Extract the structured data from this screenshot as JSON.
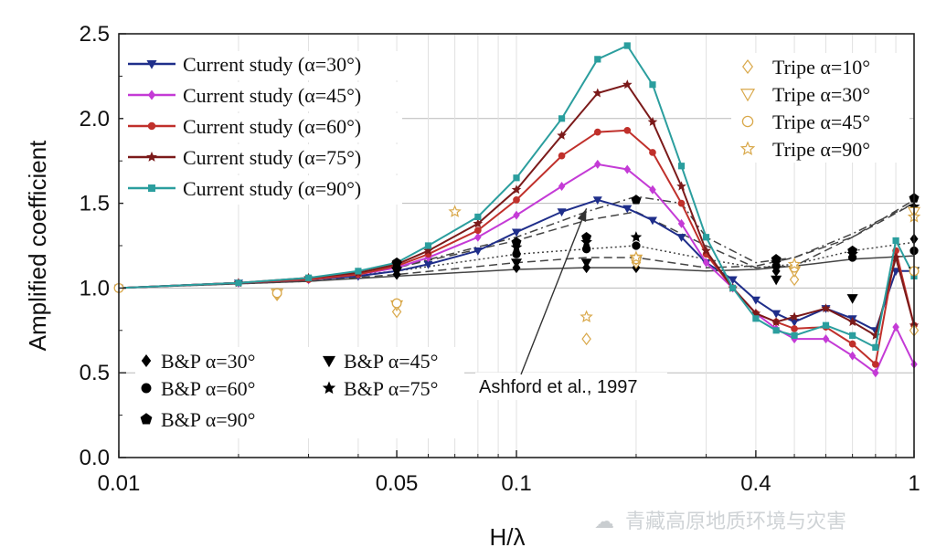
{
  "chart_data": {
    "type": "line",
    "xlabel": "H/λ",
    "ylabel": "Amplified coefficient",
    "xscale": "log",
    "xlim": [
      0.01,
      1
    ],
    "ylim": [
      0,
      2.5
    ],
    "xticks": [
      {
        "value": 0.01,
        "label": "0.01"
      },
      {
        "value": 0.05,
        "label": "0.05"
      },
      {
        "value": 0.1,
        "label": "0.1"
      },
      {
        "value": 0.4,
        "label": "0.4"
      },
      {
        "value": 1,
        "label": "1"
      }
    ],
    "yticks": [
      {
        "value": 0,
        "label": "0.0"
      },
      {
        "value": 0.5,
        "label": "0.5"
      },
      {
        "value": 1,
        "label": "1.0"
      },
      {
        "value": 1.5,
        "label": "1.5"
      },
      {
        "value": 2,
        "label": "2.0"
      },
      {
        "value": 2.5,
        "label": "2.5"
      }
    ],
    "series": [
      {
        "name": "Current study (α=30°)",
        "color": "#1f2e8a",
        "marker": "tri-down",
        "x": [
          0.01,
          0.02,
          0.03,
          0.04,
          0.05,
          0.06,
          0.08,
          0.1,
          0.13,
          0.16,
          0.19,
          0.22,
          0.26,
          0.3,
          0.35,
          0.4,
          0.45,
          0.5,
          0.6,
          0.7,
          0.8,
          0.9,
          1.0
        ],
        "y": [
          1.0,
          1.03,
          1.05,
          1.07,
          1.1,
          1.14,
          1.22,
          1.33,
          1.45,
          1.52,
          1.47,
          1.4,
          1.3,
          1.15,
          1.05,
          0.93,
          0.85,
          0.8,
          0.88,
          0.82,
          0.75,
          1.1,
          1.1
        ]
      },
      {
        "name": "Current study (α=45°)",
        "color": "#c43bd6",
        "marker": "diamond",
        "x": [
          0.01,
          0.02,
          0.03,
          0.04,
          0.05,
          0.06,
          0.08,
          0.1,
          0.13,
          0.16,
          0.19,
          0.22,
          0.26,
          0.3,
          0.35,
          0.4,
          0.45,
          0.5,
          0.6,
          0.7,
          0.8,
          0.9,
          1.0
        ],
        "y": [
          1.0,
          1.03,
          1.05,
          1.08,
          1.12,
          1.18,
          1.3,
          1.43,
          1.6,
          1.73,
          1.7,
          1.58,
          1.38,
          1.15,
          1.0,
          0.85,
          0.76,
          0.7,
          0.7,
          0.6,
          0.5,
          0.77,
          0.55
        ]
      },
      {
        "name": "Current study (α=60°)",
        "color": "#c0302b",
        "marker": "circle",
        "x": [
          0.01,
          0.02,
          0.03,
          0.04,
          0.05,
          0.06,
          0.08,
          0.1,
          0.13,
          0.16,
          0.19,
          0.22,
          0.26,
          0.3,
          0.35,
          0.4,
          0.45,
          0.5,
          0.6,
          0.7,
          0.8,
          0.9,
          1.0
        ],
        "y": [
          1.0,
          1.03,
          1.05,
          1.08,
          1.13,
          1.2,
          1.34,
          1.52,
          1.78,
          1.92,
          1.93,
          1.8,
          1.5,
          1.2,
          1.0,
          0.85,
          0.8,
          0.76,
          0.77,
          0.67,
          0.55,
          1.22,
          0.78
        ]
      },
      {
        "name": "Current study (α=75°)",
        "color": "#7b1a1a",
        "marker": "star",
        "x": [
          0.01,
          0.02,
          0.03,
          0.04,
          0.05,
          0.06,
          0.08,
          0.1,
          0.13,
          0.16,
          0.19,
          0.22,
          0.26,
          0.3,
          0.35,
          0.4,
          0.45,
          0.5,
          0.6,
          0.7,
          0.8,
          0.9,
          1.0
        ],
        "y": [
          1.0,
          1.03,
          1.06,
          1.09,
          1.14,
          1.22,
          1.38,
          1.58,
          1.9,
          2.15,
          2.2,
          1.98,
          1.6,
          1.22,
          1.0,
          0.85,
          0.8,
          0.83,
          0.88,
          0.8,
          0.72,
          1.18,
          0.78
        ]
      },
      {
        "name": "Current study (α=90°)",
        "color": "#2b9e9e",
        "marker": "square",
        "x": [
          0.01,
          0.02,
          0.03,
          0.04,
          0.05,
          0.06,
          0.08,
          0.1,
          0.13,
          0.16,
          0.19,
          0.22,
          0.26,
          0.3,
          0.35,
          0.4,
          0.45,
          0.5,
          0.6,
          0.7,
          0.8,
          0.9,
          1.0
        ],
        "y": [
          1.0,
          1.03,
          1.06,
          1.1,
          1.15,
          1.25,
          1.42,
          1.65,
          2.0,
          2.35,
          2.43,
          2.2,
          1.72,
          1.3,
          1.0,
          0.82,
          0.75,
          0.72,
          0.78,
          0.72,
          0.65,
          1.28,
          1.07
        ]
      }
    ],
    "theory_lines": [
      {
        "style": "solid",
        "x": [
          0.01,
          0.03,
          0.05,
          0.1,
          0.15,
          0.2,
          0.3,
          0.4,
          0.5,
          0.7,
          1.0
        ],
        "y": [
          1.0,
          1.04,
          1.07,
          1.11,
          1.12,
          1.12,
          1.1,
          1.11,
          1.13,
          1.17,
          1.19
        ]
      },
      {
        "style": "dotted",
        "x": [
          0.01,
          0.03,
          0.05,
          0.1,
          0.15,
          0.2,
          0.3,
          0.4,
          0.5,
          0.7,
          1.0
        ],
        "y": [
          1.0,
          1.05,
          1.1,
          1.2,
          1.23,
          1.25,
          1.17,
          1.12,
          1.14,
          1.22,
          1.27
        ]
      },
      {
        "style": "dashed",
        "x": [
          0.01,
          0.03,
          0.05,
          0.1,
          0.15,
          0.2,
          0.3,
          0.4,
          0.5,
          0.7,
          1.0
        ],
        "y": [
          1.0,
          1.04,
          1.08,
          1.15,
          1.18,
          1.18,
          1.12,
          1.13,
          1.18,
          1.3,
          1.5
        ]
      },
      {
        "style": "dashed",
        "x": [
          0.01,
          0.03,
          0.05,
          0.1,
          0.15,
          0.2,
          0.3,
          0.4,
          0.5,
          0.7,
          1.0
        ],
        "y": [
          1.0,
          1.05,
          1.12,
          1.28,
          1.4,
          1.45,
          1.25,
          1.12,
          1.13,
          1.3,
          1.52
        ]
      },
      {
        "style": "dashdot",
        "x": [
          0.01,
          0.03,
          0.05,
          0.1,
          0.15,
          0.2,
          0.26,
          0.3,
          0.4,
          0.5,
          0.7,
          1.0
        ],
        "y": [
          1.0,
          1.05,
          1.12,
          1.3,
          1.45,
          1.54,
          1.5,
          1.3,
          1.15,
          1.18,
          1.32,
          1.5
        ]
      }
    ],
    "bp_points": [
      {
        "name": "B&P α=30°",
        "marker": "diamond",
        "points": [
          [
            0.05,
            1.08
          ],
          [
            0.1,
            1.12
          ],
          [
            0.15,
            1.12
          ],
          [
            0.2,
            1.12
          ],
          [
            0.45,
            1.1
          ],
          [
            1.0,
            1.29
          ]
        ]
      },
      {
        "name": "B&P α=45°",
        "marker": "tri-down",
        "points": [
          [
            0.05,
            1.1
          ],
          [
            0.1,
            1.15
          ],
          [
            0.15,
            1.15
          ],
          [
            0.2,
            1.16
          ],
          [
            0.45,
            1.05
          ],
          [
            0.7,
            0.94
          ],
          [
            1.0,
            1.1
          ]
        ]
      },
      {
        "name": "B&P α=60°",
        "marker": "circle",
        "points": [
          [
            0.05,
            1.12
          ],
          [
            0.1,
            1.2
          ],
          [
            0.15,
            1.23
          ],
          [
            0.2,
            1.25
          ],
          [
            0.45,
            1.13
          ],
          [
            0.7,
            1.18
          ],
          [
            1.0,
            1.22
          ]
        ]
      },
      {
        "name": "B&P α=75°",
        "marker": "star",
        "points": [
          [
            0.05,
            1.14
          ],
          [
            0.1,
            1.24
          ],
          [
            0.15,
            1.27
          ],
          [
            0.2,
            1.3
          ],
          [
            0.45,
            1.15
          ],
          [
            0.7,
            1.2
          ],
          [
            1.0,
            1.48
          ]
        ]
      },
      {
        "name": "B&P α=90°",
        "marker": "pentagon",
        "points": [
          [
            0.05,
            1.15
          ],
          [
            0.1,
            1.27
          ],
          [
            0.15,
            1.3
          ],
          [
            0.2,
            1.52
          ],
          [
            0.45,
            1.17
          ],
          [
            0.7,
            1.22
          ],
          [
            1.0,
            1.53
          ]
        ]
      }
    ],
    "tripe_points": [
      {
        "name": "Tripe α=10°",
        "marker": "diamond-open",
        "points": [
          [
            0.025,
            0.96
          ],
          [
            0.05,
            0.86
          ],
          [
            0.15,
            0.7
          ],
          [
            0.2,
            1.15
          ],
          [
            0.5,
            1.05
          ],
          [
            1.0,
            0.75
          ]
        ]
      },
      {
        "name": "Tripe α=30°",
        "marker": "tri-down-open",
        "points": [
          [
            0.025,
            0.97
          ],
          [
            0.05,
            0.9
          ],
          [
            0.2,
            1.17
          ],
          [
            0.5,
            1.1
          ],
          [
            1.0,
            1.45
          ]
        ]
      },
      {
        "name": "Tripe α=45°",
        "marker": "circle-open",
        "points": [
          [
            0.01,
            1.0
          ],
          [
            0.025,
            0.97
          ],
          [
            0.05,
            0.91
          ],
          [
            0.2,
            1.17
          ],
          [
            0.5,
            1.12
          ],
          [
            1.0,
            1.1
          ]
        ]
      },
      {
        "name": "Tripe α=90°",
        "marker": "star-open",
        "points": [
          [
            0.07,
            1.45
          ],
          [
            0.15,
            0.83
          ],
          [
            0.2,
            1.18
          ],
          [
            0.5,
            1.14
          ],
          [
            1.0,
            1.42
          ]
        ]
      }
    ],
    "annotation": {
      "text": "Ashford et al., 1997",
      "target_x": 0.15,
      "target_y": 1.47
    }
  },
  "legends": {
    "current": [
      "Current study (α=30°)",
      "Current study (α=45°)",
      "Current study (α=60°)",
      "Current study (α=75°)",
      "Current study (α=90°)"
    ],
    "tripe": [
      "Tripe α=10°",
      "Tripe α=30°",
      "Tripe α=45°",
      "Tripe α=90°"
    ],
    "bp": [
      "B&P α=30°",
      "B&P α=45°",
      "B&P α=60°",
      "B&P α=75°",
      "B&P α=90°"
    ]
  },
  "watermark": {
    "text": "青藏高原地质环境与灾害"
  }
}
